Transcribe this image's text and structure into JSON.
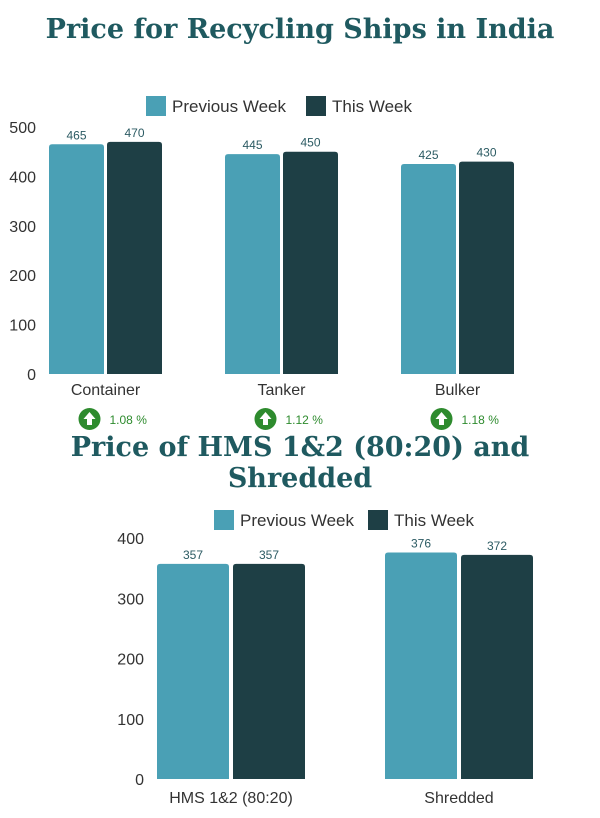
{
  "colors": {
    "previous": "#4aa0b5",
    "current": "#1e3f45",
    "title": "#1f5a60",
    "up": "#2e8b2e"
  },
  "chart_data": [
    {
      "type": "bar",
      "title": "Price for Recycling Ships in India",
      "categories": [
        "Container",
        "Tanker",
        "Bulker"
      ],
      "series": [
        {
          "name": "Previous Week",
          "values": [
            465,
            445,
            425
          ]
        },
        {
          "name": "This Week",
          "values": [
            470,
            450,
            430
          ]
        }
      ],
      "change": [
        "1.08 %",
        "1.12 %",
        "1.18 %"
      ],
      "change_icon": "arrow-up-circle-icon",
      "ylim": [
        0,
        500
      ],
      "yticks": [
        0,
        100,
        200,
        300,
        400,
        500
      ],
      "legend": "top-center",
      "grid": false
    },
    {
      "type": "bar",
      "title": "Price of HMS 1&2 (80:20) and Shredded",
      "categories": [
        "HMS 1&2 (80:20)",
        "Shredded"
      ],
      "series": [
        {
          "name": "Previous Week",
          "values": [
            357,
            376
          ]
        },
        {
          "name": "This Week",
          "values": [
            357,
            372
          ]
        }
      ],
      "ylim": [
        0,
        400
      ],
      "yticks": [
        0,
        100,
        200,
        300,
        400
      ],
      "legend": "top-center",
      "grid": false
    }
  ]
}
